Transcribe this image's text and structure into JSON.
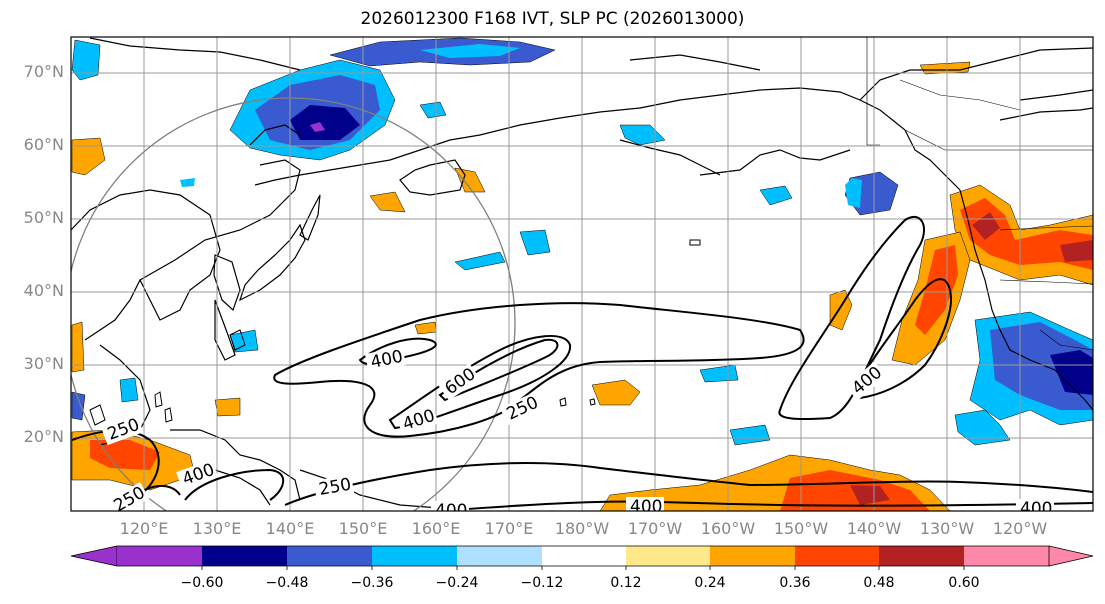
{
  "title": "2026012300 F168 IVT, SLP PC (2026013000)",
  "lat_labels": [
    "70°N",
    "60°N",
    "50°N",
    "40°N",
    "30°N",
    "20°N"
  ],
  "lon_labels": [
    "120°E",
    "130°E",
    "140°E",
    "150°E",
    "160°E",
    "170°E",
    "180°W",
    "170°W",
    "160°W",
    "150°W",
    "140°W",
    "130°W",
    "120°W"
  ],
  "contour_labels": [
    "400",
    "600",
    "400",
    "250",
    "400",
    "250",
    "400",
    "250",
    "400",
    "400",
    "250",
    "400"
  ],
  "colorbar": {
    "tick_labels": [
      "−0.60",
      "−0.48",
      "−0.36",
      "−0.24",
      "−0.12",
      "0.12",
      "0.24",
      "0.36",
      "0.48",
      "0.60"
    ],
    "colors": [
      "#9932cc",
      "#00008b",
      "#3a5bd0",
      "#00bfff",
      "#b0e0ff",
      "#ffffff",
      "#ffe98a",
      "#ffa500",
      "#ff4500",
      "#b22222",
      "#ff88aa"
    ]
  },
  "colors": {
    "land_outline": "#000000",
    "grid": "#999999",
    "label_gray": "#888888"
  }
}
